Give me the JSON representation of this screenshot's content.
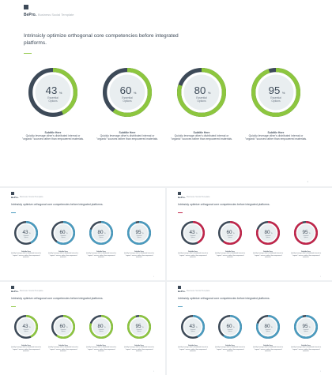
{
  "brand": {
    "name": "BePro.",
    "subtitle": "Business Social Template"
  },
  "headline": "Intrinsicly optimize orthogonal core competencies before integrated platforms.",
  "page_number": "1",
  "colors": {
    "background_ring": "#d9dde2",
    "dark_ring": "#3d4a58",
    "inner_circle": "#e9eef0",
    "text_dark": "#3d4a58"
  },
  "stats": [
    {
      "value": "43",
      "unit": "%",
      "label_line1": "Essential",
      "label_line2": "Options",
      "percent": 43
    },
    {
      "value": "60",
      "unit": "%",
      "label_line1": "Essential",
      "label_line2": "Options",
      "percent": 60
    },
    {
      "value": "80",
      "unit": "%",
      "label_line1": "Essential",
      "label_line2": "Options",
      "percent": 80
    },
    {
      "value": "95",
      "unit": "%",
      "label_line1": "Essential",
      "label_line2": "Options",
      "percent": 95
    }
  ],
  "caption": {
    "title": "Subtitle Here",
    "body": "Quickly leverage other's distributed internal or \"organic\" sources rather than empowered materials."
  },
  "slides": [
    {
      "id": "main",
      "accent": "#8dc63f"
    },
    {
      "id": "t1",
      "accent": "#4a9bbf"
    },
    {
      "id": "t2",
      "accent": "#c2254a"
    },
    {
      "id": "t3",
      "accent": "#8dc63f"
    },
    {
      "id": "t4",
      "accent": "#4a9bbf"
    }
  ]
}
